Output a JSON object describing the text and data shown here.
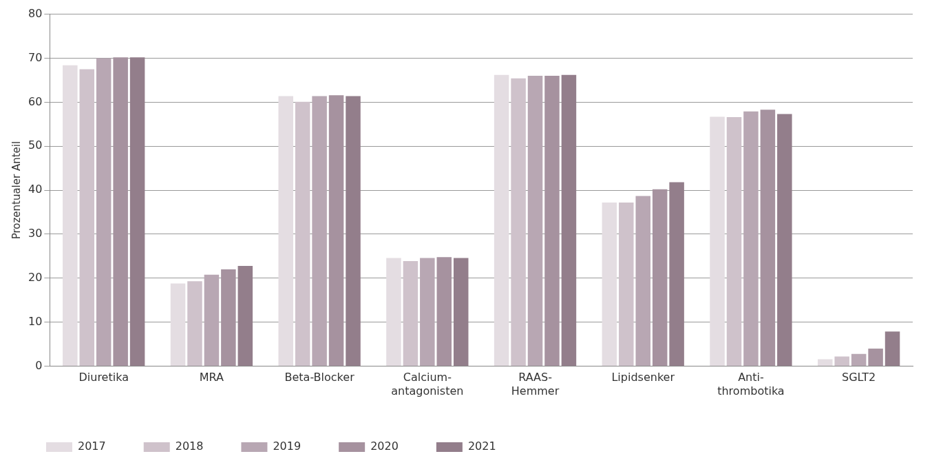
{
  "chart_data": {
    "type": "bar",
    "ylabel": "Prozentualer Anteil",
    "categories": [
      "Diuretika",
      "MRA",
      "Beta-Blocker",
      "Calcium-\nantagonisten",
      "RAAS-\nHemmer",
      "Lipidsenker",
      "Anti-\nthrombotika",
      "SGLT2"
    ],
    "series": [
      {
        "name": "2017",
        "color": "#e4dde2",
        "values": [
          68.4,
          18.8,
          61.4,
          24.6,
          66.2,
          37.2,
          56.7,
          1.6
        ]
      },
      {
        "name": "2018",
        "color": "#cfc2cb",
        "values": [
          67.5,
          19.3,
          60.1,
          23.9,
          65.4,
          37.2,
          56.6,
          2.2
        ]
      },
      {
        "name": "2019",
        "color": "#b8a7b3",
        "values": [
          70.0,
          20.8,
          61.4,
          24.6,
          66.0,
          38.7,
          57.9,
          2.8
        ]
      },
      {
        "name": "2020",
        "color": "#a6929f",
        "values": [
          70.2,
          22.0,
          61.6,
          24.8,
          66.0,
          40.2,
          58.3,
          4.0
        ]
      },
      {
        "name": "2021",
        "color": "#937e8b",
        "values": [
          70.2,
          22.8,
          61.4,
          24.6,
          66.2,
          41.8,
          57.3,
          7.9
        ]
      }
    ],
    "ylim": [
      0,
      80
    ],
    "yticks": [
      0,
      10,
      20,
      30,
      40,
      50,
      60,
      70,
      80
    ],
    "grid": "y",
    "legend": "bottom left"
  }
}
